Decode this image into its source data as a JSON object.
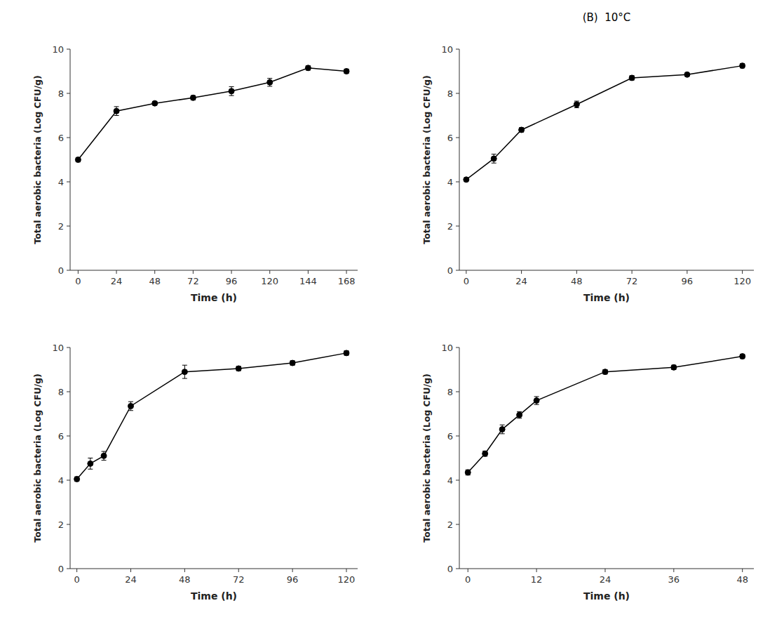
{
  "chart_data": [
    {
      "type": "line",
      "color": "black",
      "marker": "o",
      "grid": false,
      "x": [
        0,
        24,
        48,
        72,
        96,
        120,
        144,
        168
      ],
      "values": [
        5.0,
        7.2,
        7.55,
        7.8,
        8.1,
        8.5,
        9.15,
        9.0
      ],
      "errors": [
        0.1,
        0.2,
        0.08,
        0.1,
        0.2,
        0.18,
        0.1,
        0.1
      ],
      "xlim": [
        -5,
        175
      ],
      "xticks": [
        0,
        24,
        48,
        72,
        96,
        120,
        144,
        168
      ],
      "ylim": [
        0,
        10
      ],
      "yticks": [
        0,
        2,
        4,
        6,
        8,
        10
      ],
      "xlabel": "Time (h)",
      "ylabel": "Total aerobic bacteria (Log CFU/g)"
    },
    {
      "type": "line",
      "color": "black",
      "marker": "o",
      "grid": false,
      "title": "(B)  10°C",
      "x": [
        0,
        12,
        24,
        48,
        72,
        96,
        120
      ],
      "values": [
        4.1,
        5.05,
        6.35,
        7.5,
        8.7,
        8.85,
        9.25
      ],
      "errors": [
        0.05,
        0.2,
        0.1,
        0.15,
        0.1,
        0.05,
        0.1
      ],
      "xlim": [
        -3,
        125
      ],
      "xticks": [
        0,
        24,
        48,
        72,
        96,
        120
      ],
      "ylim": [
        0,
        10
      ],
      "yticks": [
        0,
        2,
        4,
        6,
        8,
        10
      ],
      "xlabel": "Time (h)",
      "ylabel": "Total aerobic bacteria (Log CFU/g)"
    },
    {
      "type": "line",
      "color": "black",
      "marker": "o",
      "grid": false,
      "x": [
        0,
        6,
        12,
        24,
        48,
        72,
        96,
        120
      ],
      "values": [
        4.05,
        4.75,
        5.1,
        7.35,
        8.9,
        9.05,
        9.3,
        9.75
      ],
      "errors": [
        0.1,
        0.25,
        0.2,
        0.2,
        0.3,
        0.1,
        0.1,
        0.1
      ],
      "xlim": [
        -3,
        125
      ],
      "xticks": [
        0,
        24,
        48,
        72,
        96,
        120
      ],
      "ylim": [
        0,
        10
      ],
      "yticks": [
        0,
        2,
        4,
        6,
        8,
        10
      ],
      "xlabel": "Time (h)",
      "ylabel": "Total aerobic bacteria (Log CFU/g)"
    },
    {
      "type": "line",
      "color": "black",
      "marker": "o",
      "grid": false,
      "x": [
        0,
        3,
        6,
        9,
        12,
        24,
        36,
        48
      ],
      "values": [
        4.35,
        5.2,
        6.3,
        6.95,
        7.6,
        8.9,
        9.1,
        9.6
      ],
      "errors": [
        0.12,
        0.12,
        0.2,
        0.15,
        0.18,
        0.1,
        0.1,
        0.1
      ],
      "xlim": [
        -1.5,
        50
      ],
      "xticks": [
        0,
        12,
        24,
        36,
        48
      ],
      "ylim": [
        0,
        10
      ],
      "yticks": [
        0,
        2,
        4,
        6,
        8,
        10
      ],
      "xlabel": "Time (h)",
      "ylabel": "Total aerobic bacteria (Log CFU/g)"
    }
  ]
}
